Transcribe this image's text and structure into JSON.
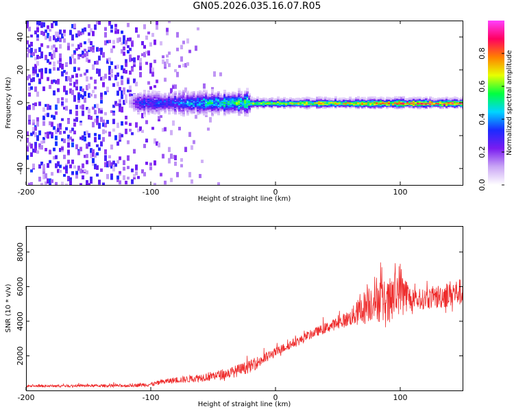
{
  "title": "GN05.2026.035.16.07.R05",
  "chart_data": [
    {
      "type": "heatmap",
      "xlabel": "Height of straight line (km)",
      "ylabel": "Frequency (Hz)",
      "xlim": [
        -200,
        150
      ],
      "ylim": [
        -50,
        50
      ],
      "xticks": [
        -200,
        -100,
        0,
        100
      ],
      "yticks": [
        -40,
        -20,
        0,
        20,
        40
      ],
      "colorbar": {
        "label": "Normalized spectral amplitude",
        "range": [
          0,
          1
        ],
        "ticks": [
          "0.0",
          "0.2",
          "0.4",
          "0.6",
          "0.8"
        ],
        "colormap": [
          "#ffffff",
          "#c9a6f5",
          "#7a1cf0",
          "#1b2bff",
          "#00d5ff",
          "#00ff40",
          "#e8ff00",
          "#ff8000",
          "#ff0060",
          "#ff40ff"
        ]
      },
      "band_summary": [
        {
          "height_km": -200,
          "noise_level": 0.25,
          "band_peak": 0.0
        },
        {
          "height_km": -120,
          "noise_level": 0.22,
          "band_peak": 0.0
        },
        {
          "height_km": -110,
          "noise_level": 0.12,
          "band_peak": 0.3
        },
        {
          "height_km": -80,
          "noise_level": 0.08,
          "band_peak": 0.35
        },
        {
          "height_km": -60,
          "noise_level": 0.02,
          "band_peak": 0.45
        },
        {
          "height_km": -30,
          "noise_level": 0.0,
          "band_peak": 0.55
        },
        {
          "height_km": 0,
          "noise_level": 0.0,
          "band_peak": 0.65
        },
        {
          "height_km": 50,
          "noise_level": 0.0,
          "band_peak": 0.7
        },
        {
          "height_km": 100,
          "noise_level": 0.0,
          "band_peak": 0.8
        },
        {
          "height_km": 150,
          "noise_level": 0.0,
          "band_peak": 0.85
        }
      ],
      "band_center_hz": 0
    },
    {
      "type": "line",
      "xlabel": "Height of straight line (km)",
      "ylabel": "SNR (10 * v/v)",
      "xlim": [
        -200,
        150
      ],
      "ylim": [
        0,
        9500
      ],
      "xticks": [
        -200,
        -100,
        0,
        100
      ],
      "yticks": [
        2000,
        4000,
        6000,
        8000
      ],
      "color": "#ee2b2b",
      "series": [
        {
          "x": [
            -200,
            -180,
            -160,
            -140,
            -120,
            -100,
            -90,
            -80,
            -70,
            -60,
            -50,
            -40,
            -30,
            -20,
            -10,
            0,
            10,
            20,
            30,
            40,
            50,
            60,
            70,
            80,
            90,
            100,
            110,
            120,
            130,
            140,
            150
          ],
          "y": [
            250,
            260,
            270,
            270,
            280,
            350,
            500,
            600,
            650,
            750,
            850,
            950,
            1150,
            1400,
            1800,
            2200,
            2600,
            2900,
            3300,
            3600,
            3900,
            4200,
            4700,
            5400,
            4900,
            6000,
            5100,
            5300,
            5400,
            5600,
            5700
          ],
          "noise": [
            120,
            120,
            120,
            130,
            150,
            200,
            250,
            300,
            350,
            400,
            450,
            500,
            600,
            600,
            600,
            450,
            450,
            450,
            450,
            500,
            600,
            800,
            1600,
            2200,
            2300,
            2500,
            900,
            1000,
            1200,
            1300,
            1300
          ]
        }
      ]
    }
  ]
}
